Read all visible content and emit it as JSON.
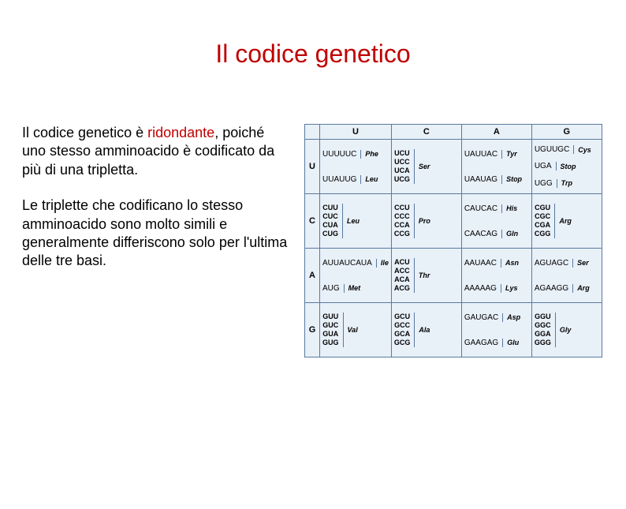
{
  "title": "Il codice genetico",
  "paragraph1_a": "Il codice genetico è ",
  "paragraph1_red": "ridondante",
  "paragraph1_b": ", poiché uno stesso amminoacido è codificato da più di una tripletta.",
  "paragraph2": "Le triplette che codificano lo stesso amminoacido sono molto simili e generalmente differiscono solo per l'ultima delle tre basi.",
  "table": {
    "bases": [
      "U",
      "C",
      "A",
      "G"
    ],
    "cells": {
      "UU": {
        "groups": [
          {
            "codons": [
              "UUU",
              "UUC"
            ],
            "aa": "Phe"
          },
          {
            "codons": [
              "UUA",
              "UUG"
            ],
            "aa": "Leu"
          }
        ]
      },
      "UC": {
        "groups": [
          {
            "codons": [
              "UCU",
              "UCC",
              "UCA",
              "UCG"
            ],
            "aa": "Ser"
          }
        ]
      },
      "UA": {
        "groups": [
          {
            "codons": [
              "UAU",
              "UAC"
            ],
            "aa": "Tyr"
          },
          {
            "codons": [
              "UAA",
              "UAG"
            ],
            "aa": "Stop"
          }
        ]
      },
      "UG": {
        "groups": [
          {
            "codons": [
              "UGU",
              "UGC"
            ],
            "aa": "Cys"
          },
          {
            "codons": [
              "UGA"
            ],
            "aa": "Stop"
          },
          {
            "codons": [
              "UGG"
            ],
            "aa": "Trp"
          }
        ]
      },
      "CU": {
        "groups": [
          {
            "codons": [
              "CUU",
              "CUC",
              "CUA",
              "CUG"
            ],
            "aa": "Leu"
          }
        ]
      },
      "CC": {
        "groups": [
          {
            "codons": [
              "CCU",
              "CCC",
              "CCA",
              "CCG"
            ],
            "aa": "Pro"
          }
        ]
      },
      "CA": {
        "groups": [
          {
            "codons": [
              "CAU",
              "CAC"
            ],
            "aa": "His"
          },
          {
            "codons": [
              "CAA",
              "CAG"
            ],
            "aa": "Gln"
          }
        ]
      },
      "CG": {
        "groups": [
          {
            "codons": [
              "CGU",
              "CGC",
              "CGA",
              "CGG"
            ],
            "aa": "Arg"
          }
        ]
      },
      "AU": {
        "groups": [
          {
            "codons": [
              "AUU",
              "AUC",
              "AUA"
            ],
            "aa": "Ile"
          },
          {
            "codons": [
              "AUG"
            ],
            "aa": "Met"
          }
        ]
      },
      "AC": {
        "groups": [
          {
            "codons": [
              "ACU",
              "ACC",
              "ACA",
              "ACG"
            ],
            "aa": "Thr"
          }
        ]
      },
      "AA": {
        "groups": [
          {
            "codons": [
              "AAU",
              "AAC"
            ],
            "aa": "Asn"
          },
          {
            "codons": [
              "AAA",
              "AAG"
            ],
            "aa": "Lys"
          }
        ]
      },
      "AG": {
        "groups": [
          {
            "codons": [
              "AGU",
              "AGC"
            ],
            "aa": "Ser"
          },
          {
            "codons": [
              "AGA",
              "AGG"
            ],
            "aa": "Arg"
          }
        ]
      },
      "GU": {
        "groups": [
          {
            "codons": [
              "GUU",
              "GUC",
              "GUA",
              "GUG"
            ],
            "aa": "Val"
          }
        ]
      },
      "GC": {
        "groups": [
          {
            "codons": [
              "GCU",
              "GCC",
              "GCA",
              "GCG"
            ],
            "aa": "Ala"
          }
        ]
      },
      "GA": {
        "groups": [
          {
            "codons": [
              "GAU",
              "GAC"
            ],
            "aa": "Asp"
          },
          {
            "codons": [
              "GAA",
              "GAG"
            ],
            "aa": "Glu"
          }
        ]
      },
      "GG": {
        "groups": [
          {
            "codons": [
              "GGU",
              "GGC",
              "GGA",
              "GGG"
            ],
            "aa": "Gly"
          }
        ]
      }
    },
    "colors": {
      "background": "#e8f0f8",
      "border": "#5a7aa0",
      "text": "#000000"
    }
  }
}
